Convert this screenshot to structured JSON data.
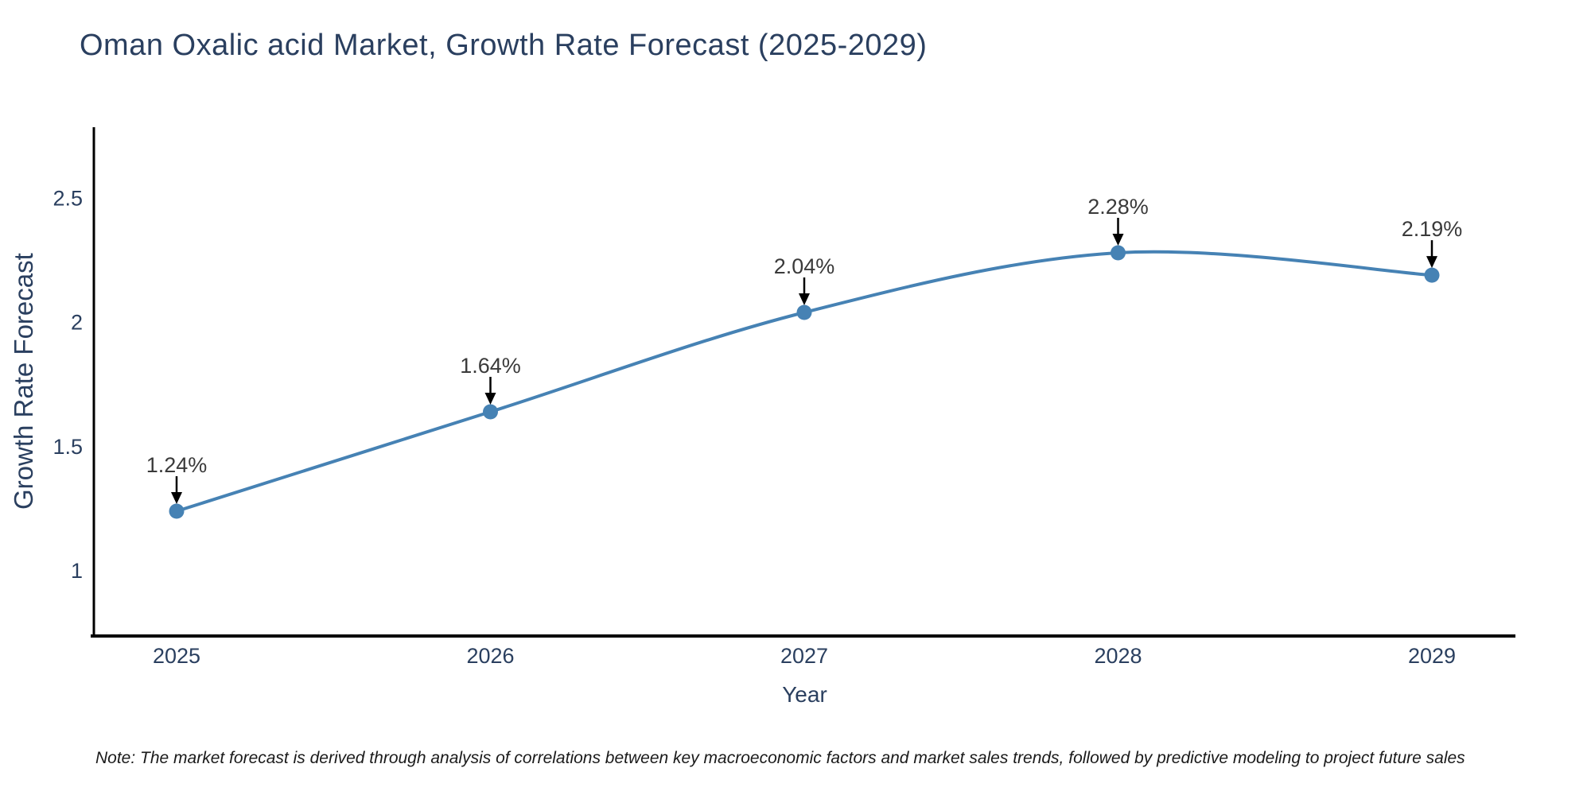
{
  "chart_data": {
    "type": "line",
    "title": "Oman Oxalic acid Market, Growth Rate Forecast (2025-2029)",
    "xlabel": "Year",
    "ylabel": "Growth Rate Forecast",
    "categories": [
      "2025",
      "2026",
      "2027",
      "2028",
      "2029"
    ],
    "x": [
      2025,
      2026,
      2027,
      2028,
      2029
    ],
    "values": [
      1.24,
      1.64,
      2.04,
      2.28,
      2.19
    ],
    "point_labels": [
      "1.24%",
      "1.64%",
      "2.04%",
      "2.28%",
      "2.19%"
    ],
    "yticks": [
      1,
      1.5,
      2,
      2.5
    ],
    "ytick_labels": [
      "1",
      "1.5",
      "2",
      "2.5"
    ],
    "ylim": [
      0.74,
      2.79
    ],
    "xlim_pad_years": [
      0.26,
      0.27
    ],
    "grid": false,
    "legend_position": "none",
    "smooth": true,
    "colors": {
      "line": "#4682B4",
      "marker": "#4682B4",
      "axis": "#000000",
      "arrow": "#000000",
      "axis_text": "#2a3f5f",
      "annotation_text": "#3a3a3a",
      "title_text": "#2a3f5f",
      "background": "#ffffff"
    }
  },
  "footnote": {
    "text": "Note: The market forecast is derived through analysis of correlations between key macroeconomic factors and market sales trends, followed by predictive modeling to project future sales"
  }
}
